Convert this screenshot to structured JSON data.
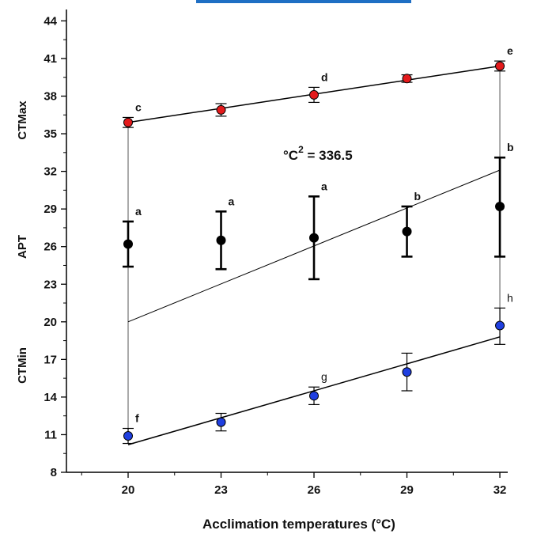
{
  "chart_data": {
    "type": "scatter",
    "title": "",
    "xlabel": "Acclimation temperatures (°C)",
    "ylabel": "",
    "x_ticks": [
      20,
      23,
      26,
      29,
      32
    ],
    "y_ticks": [
      8,
      11,
      14,
      17,
      20,
      23,
      26,
      29,
      32,
      35,
      38,
      41,
      44
    ],
    "xlim": [
      17,
      35
    ],
    "ylim": [
      8,
      45
    ],
    "grid": false,
    "group_labels": [
      "CTMax",
      "APT",
      "CTMin"
    ],
    "annotation": {
      "text": "°C",
      "sup": "2",
      "suffix": " = 336.5"
    },
    "series": [
      {
        "name": "CTMax",
        "color": "#e41a1c",
        "x": [
          20,
          23,
          26,
          29,
          32
        ],
        "y": [
          35.9,
          36.9,
          38.1,
          39.4,
          40.4
        ],
        "err_lo": [
          0.4,
          0.5,
          0.6,
          0.3,
          0.4
        ],
        "err_hi": [
          0.4,
          0.5,
          0.6,
          0.3,
          0.4
        ],
        "letters": [
          "c",
          "",
          "d",
          "",
          "e"
        ],
        "fit": [
          [
            20,
            35.9
          ],
          [
            32,
            40.4
          ]
        ],
        "heavy": false
      },
      {
        "name": "APT",
        "color": "#000000",
        "x": [
          20,
          23,
          26,
          29,
          32
        ],
        "y": [
          26.2,
          26.5,
          26.7,
          27.2,
          29.2
        ],
        "err_lo": [
          1.8,
          2.3,
          3.3,
          2.0,
          4.0
        ],
        "err_hi": [
          1.8,
          2.3,
          3.3,
          2.0,
          3.9
        ],
        "letters": [
          "a",
          "a",
          "a",
          "b",
          "b"
        ],
        "fit": [
          [
            20,
            20.0
          ],
          [
            32,
            32.1
          ]
        ],
        "heavy": true
      },
      {
        "name": "CTMin",
        "color": "#1f3fe0",
        "x": [
          20,
          23,
          26,
          29,
          32
        ],
        "y": [
          10.9,
          12.0,
          14.1,
          16.0,
          19.7
        ],
        "err_lo": [
          0.6,
          0.7,
          0.7,
          1.5,
          1.5
        ],
        "err_hi": [
          0.6,
          0.7,
          0.7,
          1.5,
          1.4
        ],
        "letters": [
          "f",
          "",
          "g",
          "",
          "h"
        ],
        "fit": [
          [
            20,
            10.2
          ],
          [
            32,
            18.8
          ]
        ],
        "heavy": false
      }
    ],
    "connectors": [
      {
        "x": 20,
        "y_from": 10.9,
        "y_to": 35.9
      },
      {
        "x": 32,
        "y_from": 19.7,
        "y_to": 40.4
      }
    ]
  }
}
